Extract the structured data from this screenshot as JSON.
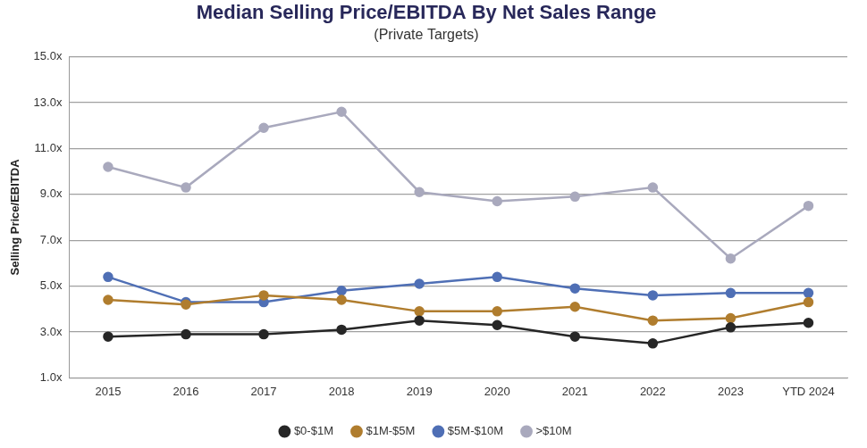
{
  "chart_data": {
    "type": "line",
    "title": "Median Selling Price/EBITDA By Net Sales Range",
    "subtitle": "(Private Targets)",
    "y_label": "Selling Price/EBITDA",
    "categories": [
      "2015",
      "2016",
      "2017",
      "2018",
      "2019",
      "2020",
      "2021",
      "2022",
      "2023",
      "YTD 2024"
    ],
    "series": [
      {
        "name": "$0-$1M",
        "color": "#262626",
        "values": [
          2.8,
          2.9,
          2.9,
          3.1,
          3.5,
          3.3,
          2.8,
          2.5,
          3.2,
          3.4
        ]
      },
      {
        "name": "$1M-$5M",
        "color": "#b07d2e",
        "values": [
          4.4,
          4.2,
          4.6,
          4.4,
          3.9,
          3.9,
          4.1,
          3.5,
          3.6,
          4.3
        ]
      },
      {
        "name": "$5M-$10M",
        "color": "#4f6fb5",
        "values": [
          5.4,
          4.3,
          4.3,
          4.8,
          5.1,
          5.4,
          4.9,
          4.6,
          4.7,
          4.7
        ]
      },
      {
        "name": ">$10M",
        "color": "#a9a9bd",
        "values": [
          10.2,
          9.3,
          11.9,
          12.6,
          9.1,
          8.7,
          8.9,
          9.3,
          6.2,
          8.5
        ]
      }
    ],
    "ylim": [
      1,
      15
    ],
    "yticks": [
      {
        "value": 1,
        "label": "1.0x"
      },
      {
        "value": 3,
        "label": "3.0x"
      },
      {
        "value": 5,
        "label": "5.0x"
      },
      {
        "value": 7,
        "label": "7.0x"
      },
      {
        "value": 9,
        "label": "9.0x"
      },
      {
        "value": 11,
        "label": "11.0x"
      },
      {
        "value": 13,
        "label": "13.0x"
      },
      {
        "value": 15,
        "label": "15.0x"
      }
    ],
    "grid": true,
    "legend": "bottom",
    "marker": "circle",
    "line_style": "solid"
  }
}
